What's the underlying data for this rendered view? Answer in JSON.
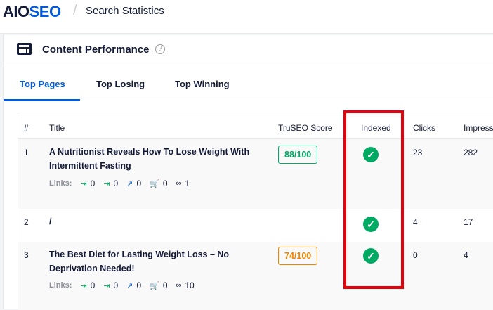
{
  "header": {
    "logo": {
      "part1": "AIO",
      "part2": "SEO"
    },
    "separator": "/",
    "breadcrumb": "Search Statistics"
  },
  "card": {
    "title": "Content Performance",
    "help": "?"
  },
  "tabs": [
    {
      "label": "Top Pages",
      "active": true
    },
    {
      "label": "Top Losing"
    },
    {
      "label": "Top Winning"
    }
  ],
  "table": {
    "columns": [
      "#",
      "Title",
      "TruSEO Score",
      "Indexed",
      "Clicks",
      "Impress"
    ],
    "rows": [
      {
        "num": "1",
        "title": "A Nutritionist Reveals How To Lose Weight With Intermittent Fasting",
        "score": "88/100",
        "score_color": "#00aa63",
        "indexed": true,
        "clicks": "23",
        "impressions": "282",
        "links": {
          "label": "Links:",
          "internal_in": "0",
          "internal_out": "0",
          "external": "0",
          "affiliate": "0",
          "total": "1"
        }
      },
      {
        "num": "2",
        "title": "/",
        "score": "",
        "indexed": true,
        "clicks": "4",
        "impressions": "17"
      },
      {
        "num": "3",
        "title": "The Best Diet for Lasting Weight Loss – No Deprivation Needed!",
        "score": "74/100",
        "score_color": "#f18200",
        "indexed": true,
        "clicks": "0",
        "impressions": "4",
        "links": {
          "label": "Links:",
          "internal_in": "0",
          "internal_out": "0",
          "external": "0",
          "affiliate": "0",
          "total": "10"
        }
      }
    ]
  },
  "colors": {
    "accent": "#005ae0",
    "success": "#00aa63",
    "warning": "#f18200",
    "highlight": "#e8000b"
  },
  "icons": {
    "check": "✓",
    "internal_in": "⇥",
    "internal_out": "⇥",
    "external": "↗",
    "affiliate": "🛒",
    "link": "∞"
  }
}
